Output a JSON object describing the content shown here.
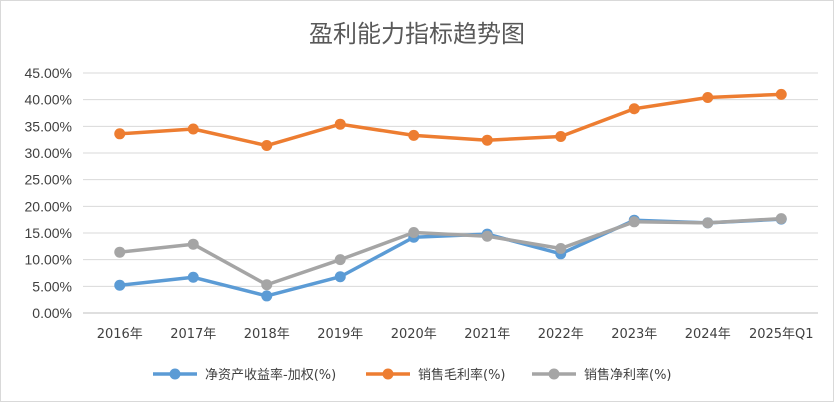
{
  "chart_data": {
    "type": "line",
    "title": "盈利能力指标趋势图",
    "categories": [
      "2016年",
      "2017年",
      "2018年",
      "2019年",
      "2020年",
      "2021年",
      "2022年",
      "2023年",
      "2024年",
      "2025年Q1"
    ],
    "ylim": [
      0,
      45
    ],
    "ytick_values": [
      0,
      5,
      10,
      15,
      20,
      25,
      30,
      35,
      40,
      45
    ],
    "ytick_labels": [
      "0.00%",
      "5.00%",
      "10.00%",
      "15.00%",
      "20.00%",
      "25.00%",
      "30.00%",
      "35.00%",
      "40.00%",
      "45.00%"
    ],
    "grid": true,
    "legend_position": "bottom",
    "series": [
      {
        "name": "净资产收益率-加权(%)",
        "color": "#5b9bd5",
        "values": [
          5.2,
          6.7,
          3.2,
          6.8,
          14.2,
          14.8,
          11.1,
          17.4,
          16.9,
          17.6
        ]
      },
      {
        "name": "销售毛利率(%)",
        "color": "#ed7d31",
        "values": [
          33.6,
          34.5,
          31.4,
          35.4,
          33.3,
          32.4,
          33.1,
          38.3,
          40.4,
          41.0
        ]
      },
      {
        "name": "销售净利率(%)",
        "color": "#a5a5a5",
        "values": [
          11.4,
          12.9,
          5.3,
          10.0,
          15.1,
          14.4,
          12.1,
          17.1,
          16.9,
          17.7
        ]
      }
    ]
  }
}
